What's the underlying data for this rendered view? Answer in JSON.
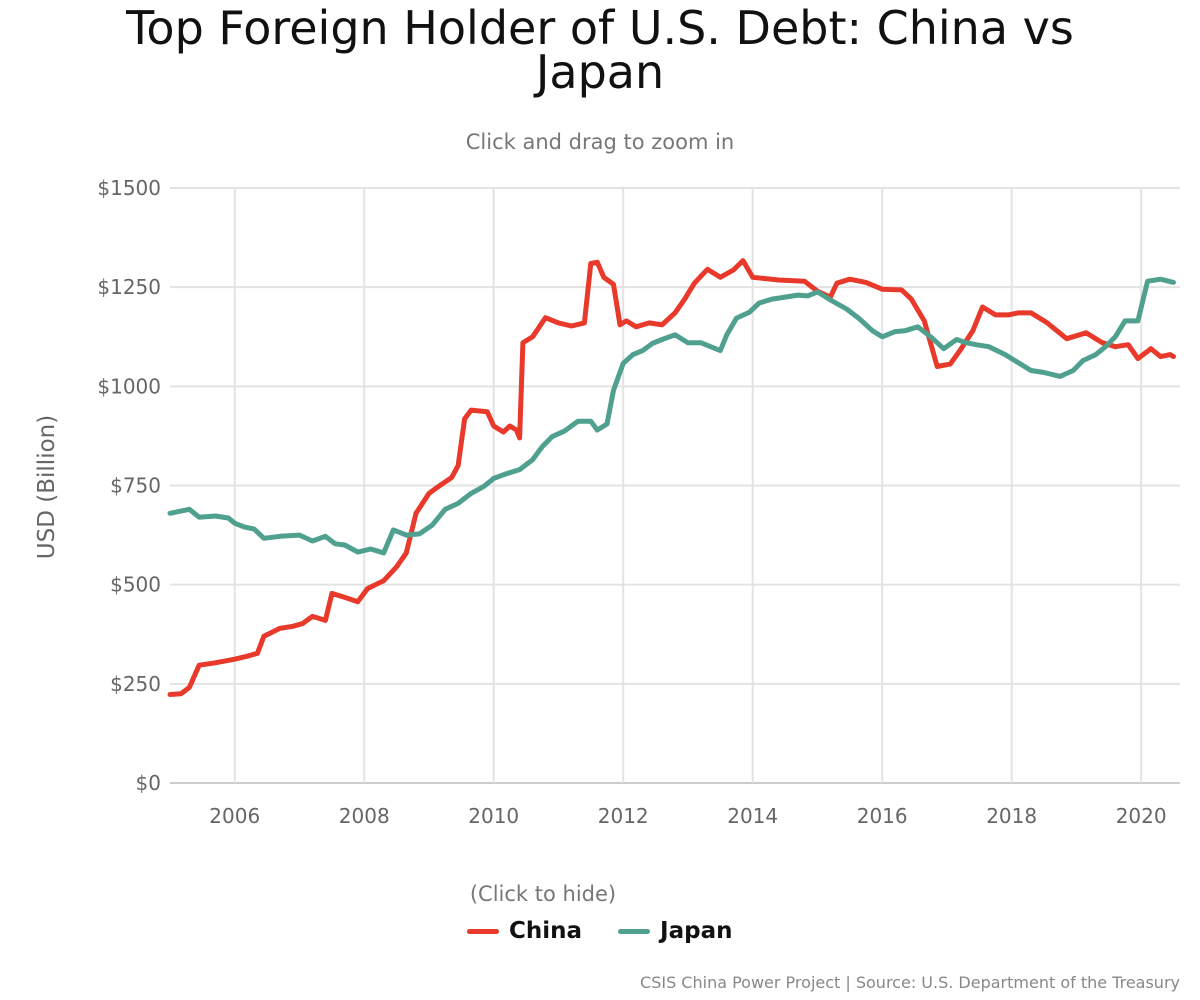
{
  "chart_data": {
    "type": "line",
    "title": "Top Foreign Holder of U.S. Debt: China vs Japan",
    "subtitle": "Click and drag to zoom in",
    "ylabel": "USD (Billion)",
    "xlim": [
      2005.0,
      2020.6
    ],
    "ylim": [
      0,
      1500
    ],
    "x_ticks": [
      2006,
      2008,
      2010,
      2012,
      2014,
      2016,
      2018,
      2020
    ],
    "x_tick_labels": [
      "2006",
      "2008",
      "2010",
      "2012",
      "2014",
      "2016",
      "2018",
      "2020"
    ],
    "y_ticks": [
      0,
      250,
      500,
      750,
      1000,
      1250,
      1500
    ],
    "y_tick_labels": [
      "$0",
      "$250",
      "$500",
      "$750",
      "$1000",
      "$1250",
      "$1500"
    ],
    "grid": true,
    "legend_position": "bottom-center",
    "legend_hint": "(Click to hide)",
    "credits": "CSIS China Power Project | Source: U.S. Department of the Treasury",
    "series": [
      {
        "name": "China",
        "color": "#e8392b",
        "points": [
          [
            2005.0,
            223
          ],
          [
            2005.17,
            225
          ],
          [
            2005.3,
            241
          ],
          [
            2005.45,
            297
          ],
          [
            2005.7,
            303
          ],
          [
            2006.0,
            312
          ],
          [
            2006.2,
            320
          ],
          [
            2006.35,
            327
          ],
          [
            2006.45,
            370
          ],
          [
            2006.7,
            390
          ],
          [
            2006.9,
            395
          ],
          [
            2007.05,
            402
          ],
          [
            2007.2,
            420
          ],
          [
            2007.4,
            410
          ],
          [
            2007.5,
            478
          ],
          [
            2007.7,
            468
          ],
          [
            2007.9,
            457
          ],
          [
            2008.05,
            490
          ],
          [
            2008.3,
            510
          ],
          [
            2008.5,
            545
          ],
          [
            2008.65,
            580
          ],
          [
            2008.8,
            680
          ],
          [
            2009.0,
            730
          ],
          [
            2009.15,
            748
          ],
          [
            2009.35,
            770
          ],
          [
            2009.45,
            800
          ],
          [
            2009.55,
            918
          ],
          [
            2009.65,
            940
          ],
          [
            2009.9,
            936
          ],
          [
            2010.0,
            900
          ],
          [
            2010.15,
            885
          ],
          [
            2010.25,
            900
          ],
          [
            2010.35,
            890
          ],
          [
            2010.4,
            870
          ],
          [
            2010.45,
            1110
          ],
          [
            2010.6,
            1125
          ],
          [
            2010.8,
            1173
          ],
          [
            2011.0,
            1160
          ],
          [
            2011.2,
            1152
          ],
          [
            2011.4,
            1160
          ],
          [
            2011.5,
            1310
          ],
          [
            2011.6,
            1313
          ],
          [
            2011.7,
            1275
          ],
          [
            2011.85,
            1257
          ],
          [
            2011.95,
            1155
          ],
          [
            2012.05,
            1165
          ],
          [
            2012.2,
            1150
          ],
          [
            2012.4,
            1160
          ],
          [
            2012.6,
            1155
          ],
          [
            2012.8,
            1185
          ],
          [
            2012.95,
            1220
          ],
          [
            2013.1,
            1260
          ],
          [
            2013.3,
            1295
          ],
          [
            2013.5,
            1275
          ],
          [
            2013.7,
            1293
          ],
          [
            2013.85,
            1317
          ],
          [
            2014.0,
            1275
          ],
          [
            2014.4,
            1268
          ],
          [
            2014.8,
            1265
          ],
          [
            2015.0,
            1240
          ],
          [
            2015.2,
            1225
          ],
          [
            2015.3,
            1260
          ],
          [
            2015.5,
            1270
          ],
          [
            2015.75,
            1262
          ],
          [
            2016.0,
            1245
          ],
          [
            2016.3,
            1243
          ],
          [
            2016.45,
            1220
          ],
          [
            2016.65,
            1165
          ],
          [
            2016.85,
            1050
          ],
          [
            2017.05,
            1056
          ],
          [
            2017.2,
            1090
          ],
          [
            2017.4,
            1140
          ],
          [
            2017.55,
            1200
          ],
          [
            2017.75,
            1180
          ],
          [
            2017.95,
            1180
          ],
          [
            2018.1,
            1185
          ],
          [
            2018.3,
            1185
          ],
          [
            2018.55,
            1160
          ],
          [
            2018.85,
            1120
          ],
          [
            2019.15,
            1135
          ],
          [
            2019.4,
            1110
          ],
          [
            2019.6,
            1100
          ],
          [
            2019.8,
            1105
          ],
          [
            2019.95,
            1070
          ],
          [
            2020.15,
            1095
          ],
          [
            2020.3,
            1075
          ],
          [
            2020.45,
            1080
          ],
          [
            2020.5,
            1075
          ]
        ]
      },
      {
        "name": "Japan",
        "color": "#4fa08f",
        "points": [
          [
            2005.0,
            680
          ],
          [
            2005.15,
            685
          ],
          [
            2005.3,
            690
          ],
          [
            2005.45,
            670
          ],
          [
            2005.7,
            673
          ],
          [
            2005.9,
            668
          ],
          [
            2006.0,
            655
          ],
          [
            2006.15,
            645
          ],
          [
            2006.3,
            640
          ],
          [
            2006.45,
            617
          ],
          [
            2006.7,
            622
          ],
          [
            2007.0,
            625
          ],
          [
            2007.2,
            610
          ],
          [
            2007.4,
            622
          ],
          [
            2007.55,
            603
          ],
          [
            2007.7,
            600
          ],
          [
            2007.9,
            582
          ],
          [
            2008.1,
            590
          ],
          [
            2008.3,
            580
          ],
          [
            2008.45,
            638
          ],
          [
            2008.65,
            625
          ],
          [
            2008.85,
            628
          ],
          [
            2009.05,
            650
          ],
          [
            2009.25,
            690
          ],
          [
            2009.45,
            705
          ],
          [
            2009.65,
            730
          ],
          [
            2009.85,
            748
          ],
          [
            2010.0,
            768
          ],
          [
            2010.2,
            780
          ],
          [
            2010.4,
            790
          ],
          [
            2010.6,
            815
          ],
          [
            2010.75,
            848
          ],
          [
            2010.9,
            873
          ],
          [
            2011.1,
            888
          ],
          [
            2011.3,
            912
          ],
          [
            2011.5,
            912
          ],
          [
            2011.6,
            890
          ],
          [
            2011.75,
            905
          ],
          [
            2011.85,
            990
          ],
          [
            2012.0,
            1058
          ],
          [
            2012.15,
            1080
          ],
          [
            2012.3,
            1090
          ],
          [
            2012.45,
            1108
          ],
          [
            2012.6,
            1118
          ],
          [
            2012.8,
            1130
          ],
          [
            2013.0,
            1110
          ],
          [
            2013.2,
            1110
          ],
          [
            2013.35,
            1100
          ],
          [
            2013.5,
            1090
          ],
          [
            2013.6,
            1130
          ],
          [
            2013.75,
            1172
          ],
          [
            2013.95,
            1187
          ],
          [
            2014.1,
            1210
          ],
          [
            2014.3,
            1220
          ],
          [
            2014.5,
            1225
          ],
          [
            2014.7,
            1230
          ],
          [
            2014.85,
            1228
          ],
          [
            2015.0,
            1238
          ],
          [
            2015.2,
            1218
          ],
          [
            2015.45,
            1195
          ],
          [
            2015.65,
            1170
          ],
          [
            2015.85,
            1140
          ],
          [
            2016.0,
            1125
          ],
          [
            2016.2,
            1138
          ],
          [
            2016.35,
            1140
          ],
          [
            2016.55,
            1150
          ],
          [
            2016.75,
            1125
          ],
          [
            2016.95,
            1095
          ],
          [
            2017.15,
            1118
          ],
          [
            2017.3,
            1110
          ],
          [
            2017.45,
            1105
          ],
          [
            2017.65,
            1100
          ],
          [
            2017.9,
            1080
          ],
          [
            2018.05,
            1065
          ],
          [
            2018.3,
            1040
          ],
          [
            2018.5,
            1035
          ],
          [
            2018.75,
            1025
          ],
          [
            2018.95,
            1040
          ],
          [
            2019.1,
            1065
          ],
          [
            2019.3,
            1080
          ],
          [
            2019.45,
            1100
          ],
          [
            2019.6,
            1125
          ],
          [
            2019.75,
            1165
          ],
          [
            2019.95,
            1165
          ],
          [
            2020.1,
            1265
          ],
          [
            2020.3,
            1270
          ],
          [
            2020.5,
            1262
          ]
        ]
      }
    ]
  }
}
